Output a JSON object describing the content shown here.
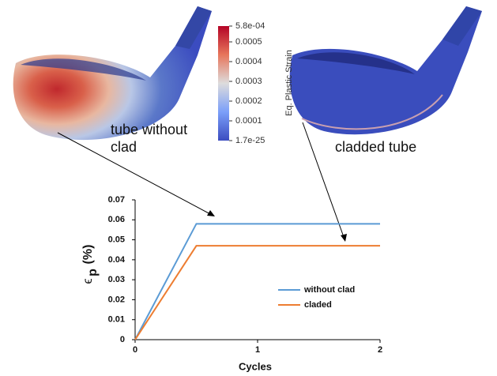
{
  "chart_data": {
    "type": "line",
    "x": [
      0,
      0.5,
      2
    ],
    "series": [
      {
        "name": "without clad",
        "color": "#5b9bd5",
        "values": [
          0,
          0.058,
          0.058
        ]
      },
      {
        "name": "claded",
        "color": "#ed7d31",
        "values": [
          0,
          0.047,
          0.047
        ]
      }
    ],
    "xlim": [
      0,
      2
    ],
    "xticks": [
      0,
      1,
      2
    ],
    "ylim": [
      0,
      0.07
    ],
    "yticks": [
      0,
      0.01,
      0.02,
      0.03,
      0.04,
      0.05,
      0.06,
      0.07
    ],
    "xlabel": "Cycles",
    "ylabel": {
      "symbol": "ϵ",
      "subscript": "p",
      "unit": "(%)"
    },
    "legend": "center-right"
  },
  "colorbar": {
    "title": "Eq. Plastic Strain",
    "range": [
      1.7e-25,
      0.00058
    ],
    "ticks": [
      {
        "value": 0.00058,
        "label": "5.8e-04"
      },
      0.0005,
      0.0004,
      0.0003,
      0.0002,
      0.0001,
      {
        "value": 1.7e-25,
        "label": "1.7e-25"
      }
    ]
  },
  "renders": {
    "left_label": "tube without clad",
    "right_label": "cladded tube"
  }
}
